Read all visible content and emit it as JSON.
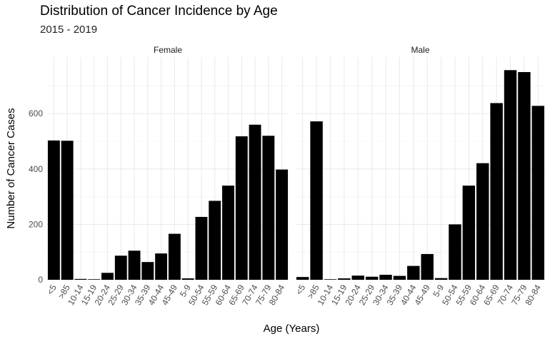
{
  "chart_data": {
    "type": "bar",
    "title": "Distribution of Cancer Incidence by Age",
    "subtitle": "2015 - 2019",
    "xlabel": "Age (Years)",
    "ylabel": "Number of Cancer Cases",
    "categories": [
      "<5",
      ">85",
      "10-14",
      "15-19",
      "20-24",
      "25-29",
      "30-34",
      "35-39",
      "40-44",
      "45-49",
      "5-9",
      "50-54",
      "55-59",
      "60-64",
      "65-69",
      "70-74",
      "75-79",
      "80-84"
    ],
    "ylim": [
      0,
      800
    ],
    "y_ticks": [
      "0",
      "200",
      "400",
      "600"
    ],
    "grid": true,
    "bar_color": "#000000",
    "facets": [
      {
        "name": "Female",
        "values": [
          503,
          502,
          3,
          2,
          25,
          87,
          105,
          64,
          95,
          166,
          5,
          227,
          285,
          340,
          518,
          560,
          520,
          398
        ]
      },
      {
        "name": "Male",
        "values": [
          10,
          572,
          2,
          5,
          15,
          11,
          18,
          14,
          50,
          93,
          6,
          200,
          340,
          421,
          638,
          757,
          750,
          628
        ]
      }
    ]
  }
}
